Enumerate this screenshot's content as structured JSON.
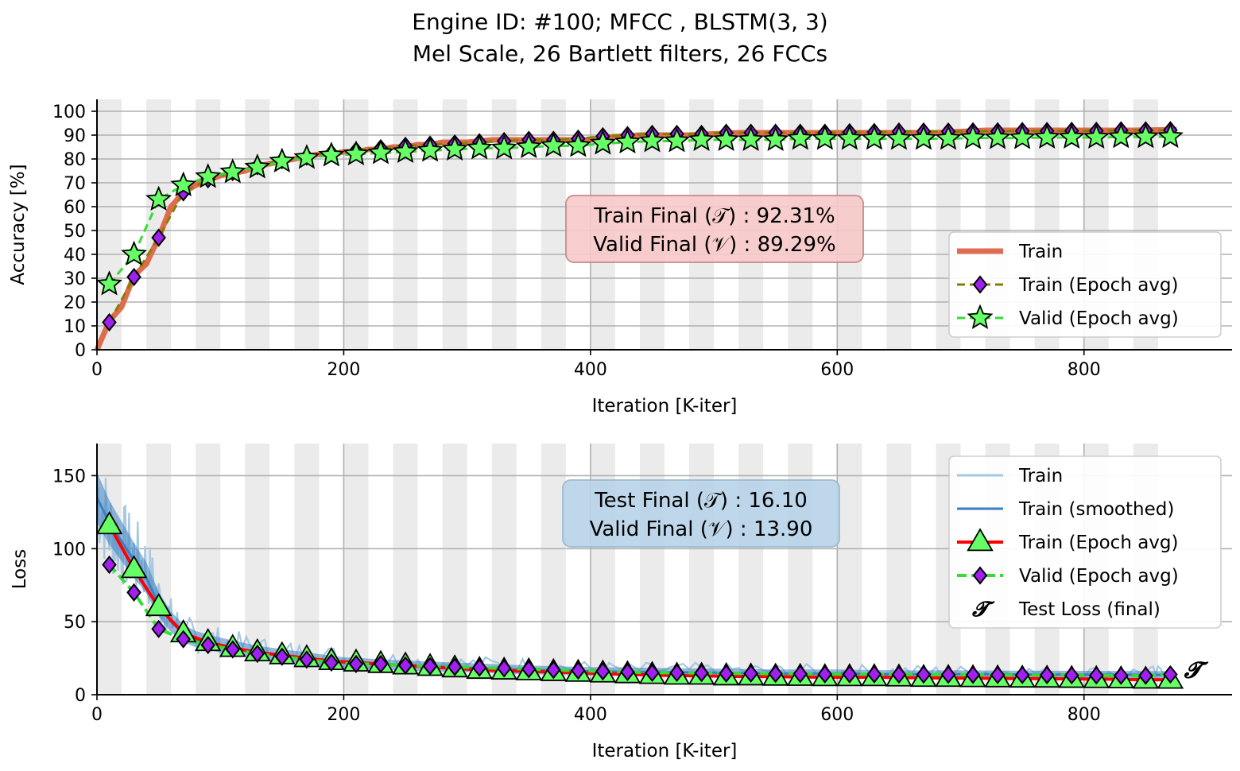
{
  "figure": {
    "title_line1": "Engine ID: #100; MFCC , BLSTM(3, 3)",
    "title_line2": "Mel Scale, 26 Bartlett filters, 26 FCCs"
  },
  "chart_data": [
    {
      "type": "line",
      "panel": "accuracy",
      "xlabel": "Iteration [K-iter]",
      "ylabel": "Accuracy [%]",
      "xlim": [
        0,
        920
      ],
      "ylim": [
        0,
        105
      ],
      "xticks": [
        0,
        200,
        400,
        600,
        800
      ],
      "yticks": [
        0,
        10,
        20,
        30,
        40,
        50,
        60,
        70,
        80,
        90,
        100
      ],
      "grid": true,
      "epoch_band_shading": true,
      "epoch_length": 20,
      "legend": {
        "position": "lower-right",
        "entries": [
          "Train",
          "Train (Epoch avg)",
          "Valid (Epoch avg)"
        ]
      },
      "annotation": {
        "line1": "Train Final (𝒯) :  92.31%",
        "line2": "Valid Final (𝒱) :  89.29%"
      },
      "epoch_x": [
        10,
        30,
        50,
        70,
        90,
        110,
        130,
        150,
        170,
        190,
        210,
        230,
        250,
        270,
        290,
        310,
        330,
        350,
        370,
        390,
        410,
        430,
        450,
        470,
        490,
        510,
        530,
        550,
        570,
        590,
        610,
        630,
        650,
        670,
        690,
        710,
        730,
        750,
        770,
        790,
        810,
        830,
        850,
        870
      ],
      "series": [
        {
          "name": "Train",
          "color": "#e06c4f",
          "x": [
            0,
            5,
            10,
            20,
            30,
            40,
            50,
            60,
            70,
            80,
            90,
            100,
            110,
            120,
            130,
            140,
            150,
            160,
            170,
            180,
            190,
            200,
            210,
            220,
            230,
            240,
            250,
            260,
            270,
            280,
            290,
            300,
            320,
            340,
            360,
            380,
            400,
            410,
            440,
            480,
            520,
            560,
            600,
            640,
            680,
            720,
            760,
            800,
            840,
            875
          ],
          "values": [
            0,
            6,
            12,
            18,
            31,
            36,
            47,
            60,
            66,
            69,
            71,
            73,
            74,
            75,
            77,
            78,
            79,
            80,
            81,
            82,
            82,
            83,
            83,
            84,
            84,
            85,
            85,
            86,
            86,
            87,
            87,
            87,
            88,
            88,
            88,
            88,
            88,
            89,
            90,
            90,
            91,
            91,
            91,
            91,
            91,
            92,
            92,
            92,
            92,
            92.3
          ]
        },
        {
          "name": "Train (Epoch avg)",
          "color": "#808000",
          "marker_color": "#a020f0",
          "values": [
            11.5,
            30.5,
            47,
            66,
            71.5,
            74.5,
            77,
            79.5,
            81,
            82.5,
            83.5,
            84.5,
            85.5,
            86,
            86.5,
            87,
            87.5,
            88,
            88,
            88.5,
            89.5,
            90,
            90.5,
            90.5,
            90.5,
            91,
            91,
            91,
            91,
            91,
            91.2,
            91.3,
            91.5,
            91.5,
            91.5,
            91.6,
            91.6,
            91.7,
            91.7,
            91.8,
            91.8,
            92,
            92,
            92.1
          ]
        },
        {
          "name": "Valid (Epoch avg)",
          "color": "#33dd33",
          "marker_color": "#66ff66",
          "values": [
            27.5,
            40,
            63,
            69,
            72.5,
            74.5,
            76.5,
            79,
            80.5,
            81.5,
            82,
            82.5,
            83,
            83.5,
            84,
            84.5,
            84.5,
            85,
            85.5,
            85.5,
            86.5,
            87,
            87.5,
            87.5,
            88,
            88,
            88,
            88,
            88.5,
            88.5,
            88.5,
            88.5,
            88.5,
            88.5,
            88.5,
            88.8,
            88.8,
            88.8,
            89,
            89,
            89,
            89.2,
            89.2,
            89.3
          ]
        }
      ]
    },
    {
      "type": "line",
      "panel": "loss",
      "xlabel": "Iteration [K-iter]",
      "ylabel": "Loss",
      "xlim": [
        0,
        920
      ],
      "ylim": [
        0,
        172
      ],
      "xticks": [
        0,
        200,
        400,
        600,
        800
      ],
      "yticks": [
        0,
        50,
        100,
        150
      ],
      "grid": true,
      "epoch_band_shading": true,
      "epoch_length": 20,
      "legend": {
        "position": "upper-right",
        "entries": [
          "Train",
          "Train (smoothed)",
          "Train (Epoch avg)",
          "Valid (Epoch avg)",
          "Test Loss (final)"
        ]
      },
      "annotation": {
        "line1": "Test Final (𝒯) :  16.10",
        "line2": "Valid Final (𝒱) :  13.90"
      },
      "epoch_x": [
        10,
        30,
        50,
        70,
        90,
        110,
        130,
        150,
        170,
        190,
        210,
        230,
        250,
        270,
        290,
        310,
        330,
        350,
        370,
        390,
        410,
        430,
        450,
        470,
        490,
        510,
        530,
        550,
        570,
        590,
        610,
        630,
        650,
        670,
        690,
        710,
        730,
        750,
        770,
        790,
        810,
        830,
        850,
        870
      ],
      "series": [
        {
          "name": "Train",
          "color": "#a6c8e0",
          "x": [
            0,
            10,
            20,
            30,
            40,
            50,
            60,
            70,
            80,
            100,
            130,
            160,
            200,
            250,
            300,
            350,
            400,
            450,
            500,
            550,
            600,
            650,
            700,
            750,
            800,
            850,
            870
          ],
          "values": [
            148,
            120,
            110,
            100,
            92,
            70,
            55,
            45,
            42,
            38,
            33,
            30,
            27,
            24,
            22,
            21,
            19,
            18,
            18,
            17.5,
            17,
            17,
            16.5,
            16.5,
            16.3,
            16.2,
            16.1
          ]
        },
        {
          "name": "Train (smoothed)",
          "color": "#3a7fbf",
          "x": [
            0,
            10,
            20,
            30,
            40,
            50,
            60,
            70,
            80,
            100,
            130,
            160,
            200,
            250,
            300,
            350,
            400,
            450,
            500,
            550,
            600,
            650,
            700,
            750,
            800,
            850,
            870
          ],
          "values": [
            135,
            118,
            105,
            92,
            80,
            62,
            50,
            42,
            38,
            34,
            29,
            26,
            22,
            20,
            18.5,
            17,
            16,
            15.5,
            15,
            14.5,
            14.5,
            14,
            14,
            13.8,
            13.7,
            13.6,
            13.5
          ]
        },
        {
          "name": "Train (Epoch avg)",
          "color": "#ff0000",
          "marker_color": "#66ff66",
          "values": [
            116,
            86,
            60,
            42,
            36,
            32,
            29,
            27,
            25,
            23,
            22,
            21,
            20,
            19,
            18,
            17,
            16.5,
            16,
            15.5,
            15,
            14.5,
            14,
            13.5,
            13,
            13,
            12.5,
            12.5,
            12.3,
            12.2,
            12,
            12,
            12,
            11.8,
            11.5,
            11.5,
            11.3,
            11.2,
            11,
            11,
            10.8,
            10.7,
            10.5,
            10.3,
            10.2
          ]
        },
        {
          "name": "Valid (Epoch avg)",
          "color": "#33dd33",
          "marker_color": "#a020f0",
          "values": [
            89,
            70,
            45,
            38,
            34,
            31,
            28,
            26,
            24,
            22,
            21,
            21,
            20,
            19.5,
            19,
            18.5,
            18,
            17.5,
            17,
            16.5,
            16,
            15.5,
            15,
            15,
            14.8,
            14.5,
            14.5,
            14.3,
            14.2,
            14,
            14,
            14,
            13.8,
            13.8,
            13.7,
            13.6,
            13.5,
            13.5,
            13.4,
            13.3,
            13.2,
            13,
            13,
            13.9
          ]
        },
        {
          "name": "Test Loss (final)",
          "marker": "𝓣",
          "x": [
            888
          ],
          "values": [
            16.1
          ]
        }
      ]
    }
  ]
}
